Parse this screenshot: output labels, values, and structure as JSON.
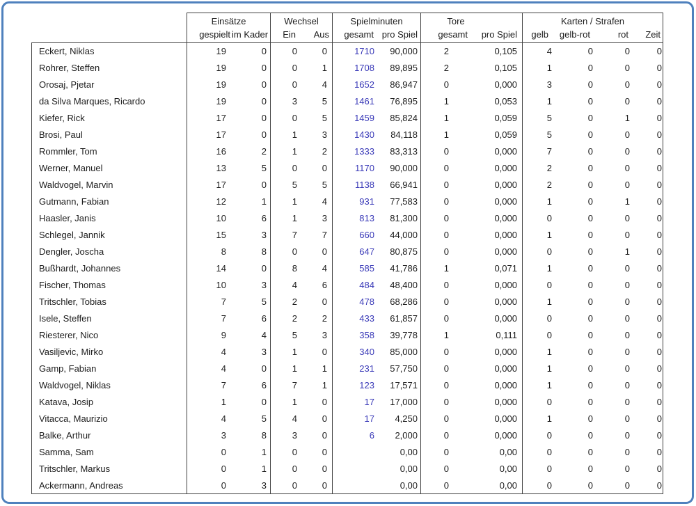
{
  "colors": {
    "frame_blue": "#4f81bd",
    "grid_line": "#3f3f3f",
    "minutes_value_blue": "#3a3ab8"
  },
  "table": {
    "groups": [
      {
        "label": "Einsätze"
      },
      {
        "label": "Wechsel"
      },
      {
        "label": "Spielminuten"
      },
      {
        "label": "Tore"
      },
      {
        "label": "Karten / Strafen"
      }
    ],
    "columns": [
      "gespielt",
      "im Kader",
      "Ein",
      "Aus",
      "gesamt",
      "pro Spiel",
      "gesamt",
      "pro Spiel",
      "gelb",
      "gelb-rot",
      "rot",
      "Zeit"
    ],
    "rows": [
      {
        "name": "Eckert, Niklas",
        "values": [
          "19",
          "0",
          "0",
          "0",
          "1710",
          "90,000",
          "2",
          "0,105",
          "4",
          "0",
          "0",
          "0"
        ]
      },
      {
        "name": "Rohrer, Steffen",
        "values": [
          "19",
          "0",
          "0",
          "1",
          "1708",
          "89,895",
          "2",
          "0,105",
          "1",
          "0",
          "0",
          "0"
        ]
      },
      {
        "name": "Orosaj, Pjetar",
        "values": [
          "19",
          "0",
          "0",
          "4",
          "1652",
          "86,947",
          "0",
          "0,000",
          "3",
          "0",
          "0",
          "0"
        ]
      },
      {
        "name": "da Silva Marques, Ricardo",
        "values": [
          "19",
          "0",
          "3",
          "5",
          "1461",
          "76,895",
          "1",
          "0,053",
          "1",
          "0",
          "0",
          "0"
        ]
      },
      {
        "name": "Kiefer, Rick",
        "values": [
          "17",
          "0",
          "0",
          "5",
          "1459",
          "85,824",
          "1",
          "0,059",
          "5",
          "0",
          "1",
          "0"
        ]
      },
      {
        "name": "Brosi, Paul",
        "values": [
          "17",
          "0",
          "1",
          "3",
          "1430",
          "84,118",
          "1",
          "0,059",
          "5",
          "0",
          "0",
          "0"
        ]
      },
      {
        "name": "Rommler, Tom",
        "values": [
          "16",
          "2",
          "1",
          "2",
          "1333",
          "83,313",
          "0",
          "0,000",
          "7",
          "0",
          "0",
          "0"
        ]
      },
      {
        "name": "Werner, Manuel",
        "values": [
          "13",
          "5",
          "0",
          "0",
          "1170",
          "90,000",
          "0",
          "0,000",
          "2",
          "0",
          "0",
          "0"
        ]
      },
      {
        "name": "Waldvogel, Marvin",
        "values": [
          "17",
          "0",
          "5",
          "5",
          "1138",
          "66,941",
          "0",
          "0,000",
          "2",
          "0",
          "0",
          "0"
        ]
      },
      {
        "name": "Gutmann, Fabian",
        "values": [
          "12",
          "1",
          "1",
          "4",
          "931",
          "77,583",
          "0",
          "0,000",
          "1",
          "0",
          "1",
          "0"
        ]
      },
      {
        "name": "Haasler, Janis",
        "values": [
          "10",
          "6",
          "1",
          "3",
          "813",
          "81,300",
          "0",
          "0,000",
          "0",
          "0",
          "0",
          "0"
        ]
      },
      {
        "name": "Schlegel, Jannik",
        "values": [
          "15",
          "3",
          "7",
          "7",
          "660",
          "44,000",
          "0",
          "0,000",
          "1",
          "0",
          "0",
          "0"
        ]
      },
      {
        "name": "Dengler, Joscha",
        "values": [
          "8",
          "8",
          "0",
          "0",
          "647",
          "80,875",
          "0",
          "0,000",
          "0",
          "0",
          "1",
          "0"
        ]
      },
      {
        "name": "Bußhardt, Johannes",
        "values": [
          "14",
          "0",
          "8",
          "4",
          "585",
          "41,786",
          "1",
          "0,071",
          "1",
          "0",
          "0",
          "0"
        ]
      },
      {
        "name": "Fischer, Thomas",
        "values": [
          "10",
          "3",
          "4",
          "6",
          "484",
          "48,400",
          "0",
          "0,000",
          "0",
          "0",
          "0",
          "0"
        ]
      },
      {
        "name": "Tritschler, Tobias",
        "values": [
          "7",
          "5",
          "2",
          "0",
          "478",
          "68,286",
          "0",
          "0,000",
          "1",
          "0",
          "0",
          "0"
        ]
      },
      {
        "name": "Isele, Steffen",
        "values": [
          "7",
          "6",
          "2",
          "2",
          "433",
          "61,857",
          "0",
          "0,000",
          "0",
          "0",
          "0",
          "0"
        ]
      },
      {
        "name": "Riesterer, Nico",
        "values": [
          "9",
          "4",
          "5",
          "3",
          "358",
          "39,778",
          "1",
          "0,111",
          "0",
          "0",
          "0",
          "0"
        ]
      },
      {
        "name": "Vasiljevic, Mirko",
        "values": [
          "4",
          "3",
          "1",
          "0",
          "340",
          "85,000",
          "0",
          "0,000",
          "1",
          "0",
          "0",
          "0"
        ]
      },
      {
        "name": "Gamp, Fabian",
        "values": [
          "4",
          "0",
          "1",
          "1",
          "231",
          "57,750",
          "0",
          "0,000",
          "1",
          "0",
          "0",
          "0"
        ]
      },
      {
        "name": "Waldvogel, Niklas",
        "values": [
          "7",
          "6",
          "7",
          "1",
          "123",
          "17,571",
          "0",
          "0,000",
          "1",
          "0",
          "0",
          "0"
        ]
      },
      {
        "name": "Katava, Josip",
        "values": [
          "1",
          "0",
          "1",
          "0",
          "17",
          "17,000",
          "0",
          "0,000",
          "0",
          "0",
          "0",
          "0"
        ]
      },
      {
        "name": "Vitacca, Maurizio",
        "values": [
          "4",
          "5",
          "4",
          "0",
          "17",
          "4,250",
          "0",
          "0,000",
          "1",
          "0",
          "0",
          "0"
        ]
      },
      {
        "name": "Balke, Arthur",
        "values": [
          "3",
          "8",
          "3",
          "0",
          "6",
          "2,000",
          "0",
          "0,000",
          "0",
          "0",
          "0",
          "0"
        ]
      },
      {
        "name": "Samma, Sam",
        "values": [
          "0",
          "1",
          "0",
          "0",
          "",
          "0,00",
          "0",
          "0,00",
          "0",
          "0",
          "0",
          "0"
        ]
      },
      {
        "name": "Tritschler, Markus",
        "values": [
          "0",
          "1",
          "0",
          "0",
          "",
          "0,00",
          "0",
          "0,00",
          "0",
          "0",
          "0",
          "0"
        ]
      },
      {
        "name": "Ackermann, Andreas",
        "values": [
          "0",
          "3",
          "0",
          "0",
          "",
          "0,00",
          "0",
          "0,00",
          "0",
          "0",
          "0",
          "0"
        ]
      }
    ]
  }
}
